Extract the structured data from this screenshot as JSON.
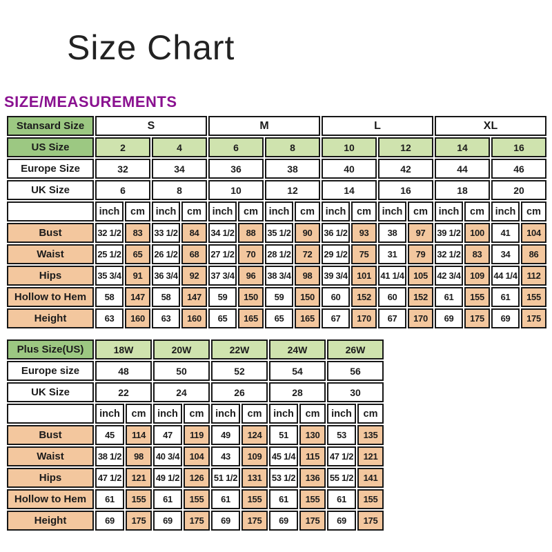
{
  "page": {
    "title": "Size Chart",
    "section_heading": "SIZE/MEASUREMENTS"
  },
  "colors": {
    "header_green": "#9cc882",
    "light_green": "#cfe3ae",
    "peach": "#f3c79e",
    "heading_purple": "#8a1190",
    "border_black": "#161616"
  },
  "standard_table": {
    "rows": [
      {
        "label": "Stansard Size",
        "labelType": "green",
        "span": 4,
        "cellType": "group",
        "values": [
          "S",
          "M",
          "L",
          "XL"
        ]
      },
      {
        "label": "US Size",
        "labelType": "green",
        "span": 2,
        "cellType": "lightgreen",
        "values": [
          "2",
          "4",
          "6",
          "8",
          "10",
          "12",
          "14",
          "16"
        ]
      },
      {
        "label": "Europe Size",
        "labelType": "plain",
        "span": 2,
        "cellType": "plain",
        "values": [
          "32",
          "34",
          "36",
          "38",
          "40",
          "42",
          "44",
          "46"
        ]
      },
      {
        "label": "UK Size",
        "labelType": "plain",
        "span": 2,
        "cellType": "plain",
        "values": [
          "6",
          "8",
          "10",
          "12",
          "14",
          "16",
          "18",
          "20"
        ]
      },
      {
        "label": "",
        "labelType": "plain",
        "span": 1,
        "cellType": "unit",
        "values": [
          "inch",
          "cm",
          "inch",
          "cm",
          "inch",
          "cm",
          "inch",
          "cm",
          "inch",
          "cm",
          "inch",
          "cm",
          "inch",
          "cm",
          "inch",
          "cm"
        ]
      },
      {
        "label": "Bust",
        "labelType": "peach",
        "span": 1,
        "cellType": "alt",
        "values": [
          "32 1/2",
          "83",
          "33 1/2",
          "84",
          "34 1/2",
          "88",
          "35 1/2",
          "90",
          "36 1/2",
          "93",
          "38",
          "97",
          "39 1/2",
          "100",
          "41",
          "104"
        ]
      },
      {
        "label": "Waist",
        "labelType": "peach",
        "span": 1,
        "cellType": "alt",
        "values": [
          "25 1/2",
          "65",
          "26 1/2",
          "68",
          "27 1/2",
          "70",
          "28 1/2",
          "72",
          "29 1/2",
          "75",
          "31",
          "79",
          "32 1/2",
          "83",
          "34",
          "86"
        ]
      },
      {
        "label": "Hips",
        "labelType": "peach",
        "span": 1,
        "cellType": "alt",
        "values": [
          "35 3/4",
          "91",
          "36 3/4",
          "92",
          "37 3/4",
          "96",
          "38 3/4",
          "98",
          "39 3/4",
          "101",
          "41 1/4",
          "105",
          "42 3/4",
          "109",
          "44 1/4",
          "112"
        ]
      },
      {
        "label": "Hollow to Hem",
        "labelType": "peach",
        "span": 1,
        "cellType": "alt",
        "values": [
          "58",
          "147",
          "58",
          "147",
          "59",
          "150",
          "59",
          "150",
          "60",
          "152",
          "60",
          "152",
          "61",
          "155",
          "61",
          "155"
        ]
      },
      {
        "label": "Height",
        "labelType": "peach",
        "span": 1,
        "cellType": "alt",
        "values": [
          "63",
          "160",
          "63",
          "160",
          "65",
          "165",
          "65",
          "165",
          "67",
          "170",
          "67",
          "170",
          "69",
          "175",
          "69",
          "175"
        ]
      }
    ]
  },
  "plus_table": {
    "rows": [
      {
        "label": "Plus Size(US)",
        "labelType": "green",
        "span": 2,
        "cellType": "lightgreen",
        "values": [
          "18W",
          "20W",
          "22W",
          "24W",
          "26W"
        ]
      },
      {
        "label": "Europe size",
        "labelType": "plain",
        "span": 2,
        "cellType": "plain",
        "values": [
          "48",
          "50",
          "52",
          "54",
          "56"
        ]
      },
      {
        "label": "UK Size",
        "labelType": "plain",
        "span": 2,
        "cellType": "plain",
        "values": [
          "22",
          "24",
          "26",
          "28",
          "30"
        ]
      },
      {
        "label": "",
        "labelType": "plain",
        "span": 1,
        "cellType": "unit",
        "values": [
          "inch",
          "cm",
          "inch",
          "cm",
          "inch",
          "cm",
          "inch",
          "cm",
          "inch",
          "cm"
        ]
      },
      {
        "label": "Bust",
        "labelType": "peach",
        "span": 1,
        "cellType": "alt",
        "values": [
          "45",
          "114",
          "47",
          "119",
          "49",
          "124",
          "51",
          "130",
          "53",
          "135"
        ]
      },
      {
        "label": "Waist",
        "labelType": "peach",
        "span": 1,
        "cellType": "alt",
        "values": [
          "38 1/2",
          "98",
          "40 3/4",
          "104",
          "43",
          "109",
          "45 1/4",
          "115",
          "47 1/2",
          "121"
        ]
      },
      {
        "label": "Hips",
        "labelType": "peach",
        "span": 1,
        "cellType": "alt",
        "values": [
          "47 1/2",
          "121",
          "49 1/2",
          "126",
          "51 1/2",
          "131",
          "53 1/2",
          "136",
          "55 1/2",
          "141"
        ]
      },
      {
        "label": "Hollow to Hem",
        "labelType": "peach",
        "span": 1,
        "cellType": "alt",
        "values": [
          "61",
          "155",
          "61",
          "155",
          "61",
          "155",
          "61",
          "155",
          "61",
          "155"
        ]
      },
      {
        "label": "Height",
        "labelType": "peach",
        "span": 1,
        "cellType": "alt",
        "values": [
          "69",
          "175",
          "69",
          "175",
          "69",
          "175",
          "69",
          "175",
          "69",
          "175"
        ]
      }
    ]
  }
}
